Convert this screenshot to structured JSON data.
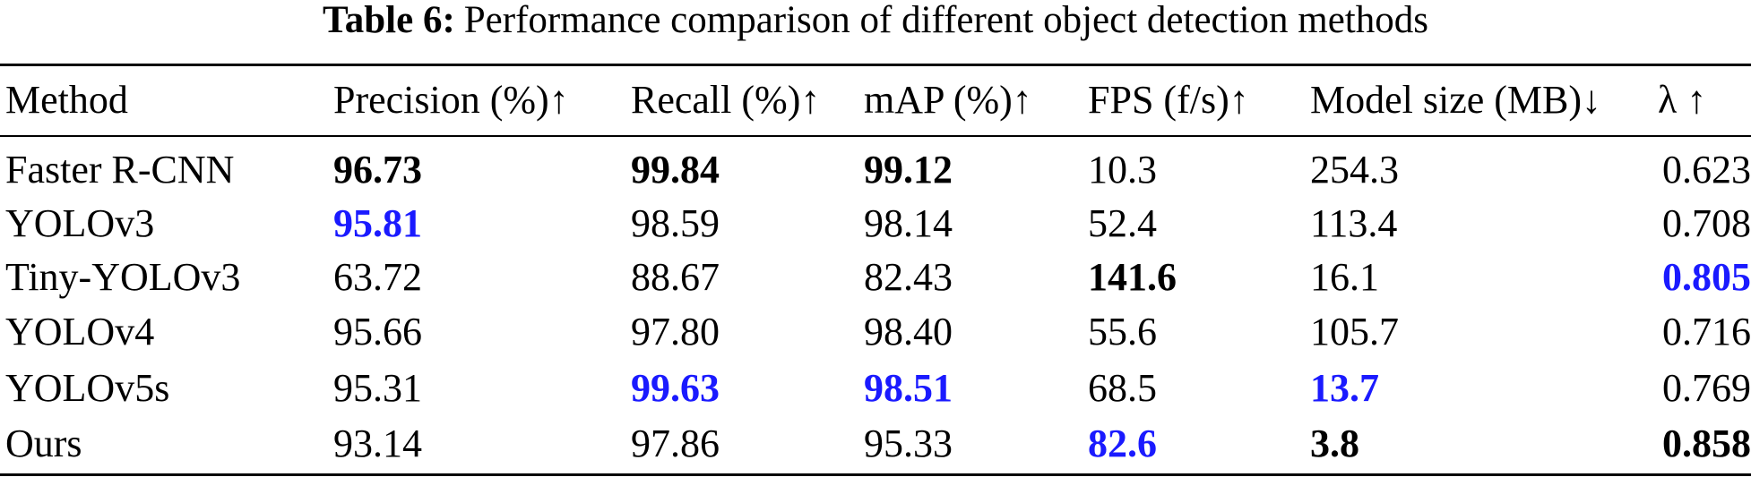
{
  "caption": {
    "label": "Table 6:",
    "text": "Performance comparison of different object detection methods"
  },
  "table": {
    "header": [
      "Method",
      "Precision (%)↑",
      "Recall (%)↑",
      "mAP (%)↑",
      "FPS (f/s)↑",
      "Model size (MB)↓",
      "λ ↑"
    ],
    "rows": [
      {
        "cells": [
          "Faster R-CNN",
          "96.73",
          "99.84",
          "99.12",
          "10.3",
          "254.3",
          "0.623"
        ],
        "emphasis": [
          null,
          "bold",
          "bold",
          "bold",
          null,
          null,
          null
        ]
      },
      {
        "cells": [
          "YOLOv3",
          "95.81",
          "98.59",
          "98.14",
          "52.4",
          "113.4",
          "0.708"
        ],
        "emphasis": [
          null,
          "blue",
          null,
          null,
          null,
          null,
          null
        ]
      },
      {
        "cells": [
          "Tiny-YOLOv3",
          "63.72",
          "88.67",
          "82.43",
          "141.6",
          "16.1",
          "0.805"
        ],
        "emphasis": [
          null,
          null,
          null,
          null,
          "bold",
          null,
          "blue"
        ]
      },
      {
        "cells": [
          "YOLOv4",
          "95.66",
          "97.80",
          "98.40",
          "55.6",
          "105.7",
          "0.716"
        ],
        "emphasis": [
          null,
          null,
          null,
          null,
          null,
          null,
          null
        ]
      },
      {
        "cells": [
          "YOLOv5s",
          "95.31",
          "99.63",
          "98.51",
          "68.5",
          "13.7",
          "0.769"
        ],
        "emphasis": [
          null,
          null,
          "blue",
          "blue",
          null,
          "blue",
          null
        ]
      },
      {
        "cells": [
          "Ours",
          "93.14",
          "97.86",
          "95.33",
          "82.6",
          "3.8",
          "0.858"
        ],
        "emphasis": [
          null,
          null,
          null,
          null,
          "blue",
          "bold",
          "bold"
        ]
      }
    ]
  }
}
